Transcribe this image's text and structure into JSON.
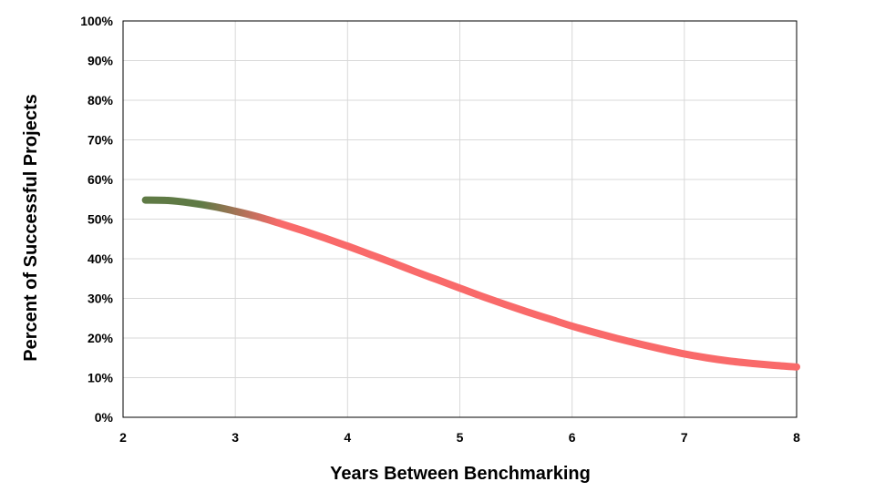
{
  "chart_data": {
    "type": "line",
    "xlabel": "Years Between Benchmarking",
    "ylabel": "Percent of Successful Projects",
    "xlim": [
      2,
      8
    ],
    "ylim": [
      0,
      100
    ],
    "x_ticks": [
      "2",
      "3",
      "4",
      "5",
      "6",
      "7",
      "8"
    ],
    "y_ticks": [
      "0%",
      "10%",
      "20%",
      "30%",
      "40%",
      "50%",
      "60%",
      "70%",
      "80%",
      "90%",
      "100%"
    ],
    "grid": true,
    "series": [
      {
        "x": [
          2.2,
          2.4,
          2.6,
          2.8,
          3.0,
          3.2,
          3.4,
          3.6,
          3.8,
          4.0,
          4.2,
          4.4,
          4.6,
          4.8,
          5.0,
          5.2,
          5.4,
          5.6,
          5.8,
          6.0,
          6.2,
          6.4,
          6.6,
          6.8,
          7.0,
          7.2,
          7.4,
          7.6,
          7.8,
          8.0
        ],
        "y": [
          54.8,
          54.7,
          54.1,
          53.2,
          52.0,
          50.6,
          48.9,
          47.1,
          45.2,
          43.2,
          41.1,
          39.0,
          36.8,
          34.7,
          32.6,
          30.5,
          28.5,
          26.6,
          24.8,
          23.0,
          21.4,
          19.9,
          18.5,
          17.2,
          16.0,
          15.0,
          14.2,
          13.6,
          13.1,
          12.7
        ],
        "color_start": "#5f7a45",
        "color_end": "#f96a6a"
      }
    ]
  }
}
